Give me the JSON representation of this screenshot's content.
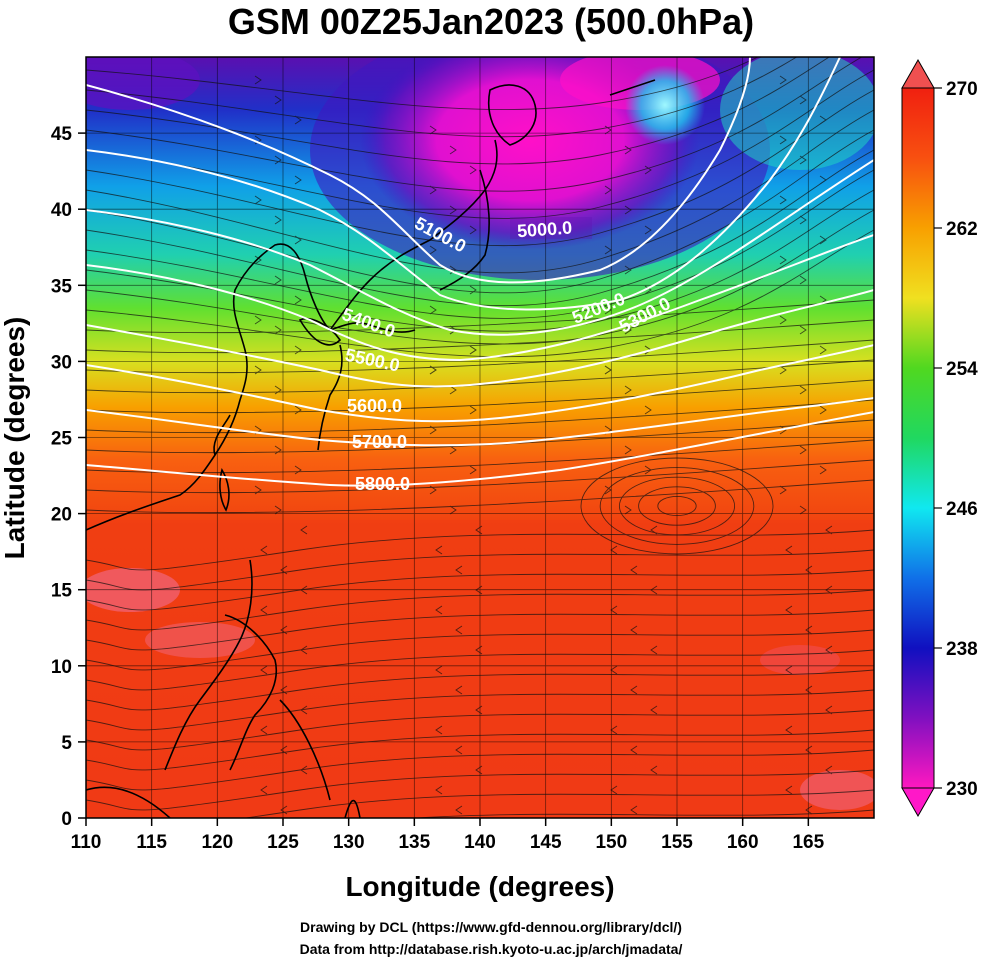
{
  "title": "GSM 00Z25Jan2023 (500.0hPa)",
  "x_axis": {
    "label": "Longitude (degrees)",
    "ticks": [
      "110",
      "115",
      "120",
      "125",
      "130",
      "135",
      "140",
      "145",
      "150",
      "155",
      "160",
      "165"
    ]
  },
  "y_axis": {
    "label": "Latitude  (degrees)",
    "ticks": [
      "0",
      "5",
      "10",
      "15",
      "20",
      "25",
      "30",
      "35",
      "40",
      "45"
    ]
  },
  "colorbar": {
    "labels": [
      "230",
      "238",
      "246",
      "254",
      "262",
      "270"
    ],
    "min": 230,
    "max": 270
  },
  "contour_labels": [
    "5000.0",
    "5100.0",
    "5200.0",
    "5300.0",
    "5400.0",
    "5500.0",
    "5600.0",
    "5700.0",
    "5800.0"
  ],
  "credits": {
    "drawing": "Drawing by DCL (https://www.gfd-dennou.org/library/dcl/)",
    "data": "Data from http://database.rish.kyoto-u.ac.jp/arch/jmadata/"
  },
  "map_extent": {
    "lon_min": 110,
    "lon_max": 170,
    "lat_min": 0,
    "lat_max": 50
  }
}
